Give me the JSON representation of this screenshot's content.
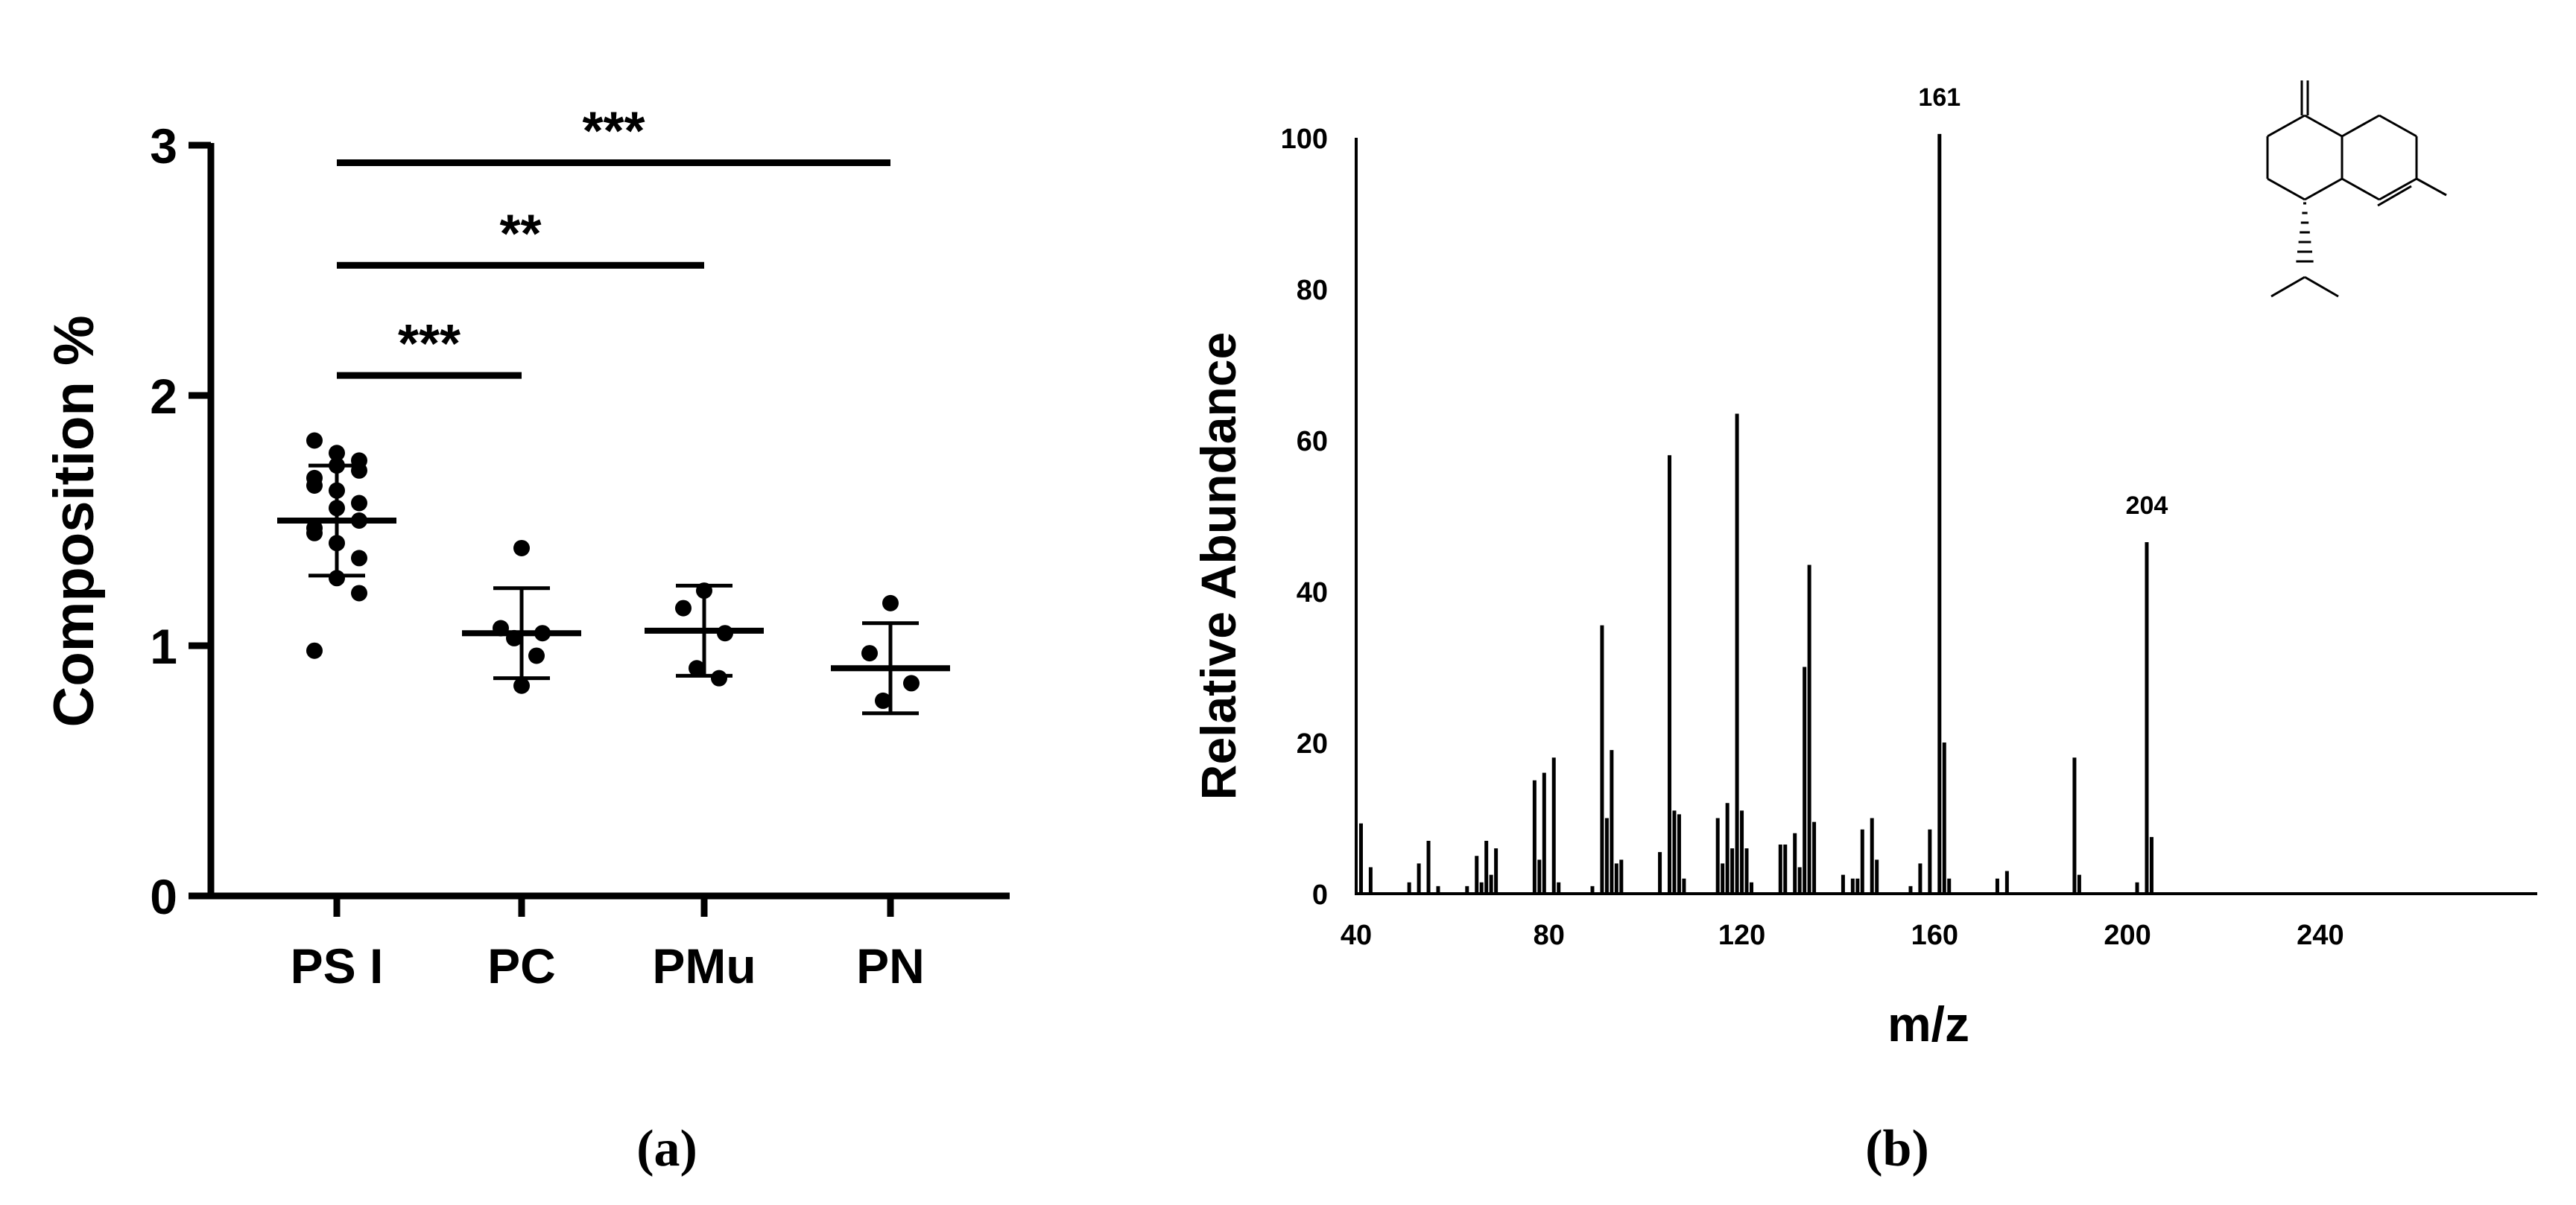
{
  "colors": {
    "ink": "#000000",
    "background": "#ffffff"
  },
  "chart_data": [
    {
      "type": "scatter",
      "panel_label": "(a)",
      "xlabel": "",
      "ylabel": "Composition %",
      "ylim": [
        0,
        3
      ],
      "yticks": [
        "0",
        "1",
        "2",
        "3"
      ],
      "categories": [
        "PS I",
        "PC",
        "PMu",
        "PN"
      ],
      "series": [
        {
          "name": "PS I",
          "points": [
            1.82,
            1.77,
            1.74,
            1.72,
            1.7,
            1.67,
            1.64,
            1.62,
            1.57,
            1.55,
            1.5,
            1.47,
            1.45,
            1.41,
            1.35,
            1.27,
            1.21,
            0.98
          ],
          "mean": 1.5,
          "sd": [
            1.28,
            1.72
          ]
        },
        {
          "name": "PC",
          "points": [
            1.39,
            1.07,
            1.05,
            1.03,
            0.96,
            0.84
          ],
          "mean": 1.05,
          "sd": [
            0.87,
            1.23
          ]
        },
        {
          "name": "PMu",
          "points": [
            1.22,
            1.15,
            1.05,
            0.91,
            0.87
          ],
          "mean": 1.06,
          "sd": [
            0.88,
            1.24
          ]
        },
        {
          "name": "PN",
          "points": [
            1.17,
            0.97,
            0.85,
            0.78
          ],
          "mean": 0.91,
          "sd": [
            0.73,
            1.09
          ]
        }
      ],
      "annotations": [
        {
          "from": "PS I",
          "to": "PC",
          "y": 2.08,
          "label": "***"
        },
        {
          "from": "PS I",
          "to": "PMu",
          "y": 2.52,
          "label": "**"
        },
        {
          "from": "PS I",
          "to": "PN",
          "y": 2.93,
          "label": "***"
        }
      ]
    },
    {
      "type": "bar",
      "panel_label": "(b)",
      "xlabel": "m/z",
      "ylabel": "Relative Abundance",
      "xlim": [
        40,
        285
      ],
      "ylim": [
        0,
        100
      ],
      "xticks": [
        "40",
        "80",
        "120",
        "160",
        "200",
        "240"
      ],
      "yticks": [
        "0",
        "20",
        "40",
        "60",
        "80",
        "100"
      ],
      "peak_labels": [
        {
          "mz": 161,
          "label": "161"
        },
        {
          "mz": 204,
          "label": "204"
        }
      ],
      "peaks": [
        [
          41,
          9.3
        ],
        [
          43,
          3.5
        ],
        [
          51,
          1.5
        ],
        [
          53,
          4
        ],
        [
          55,
          7
        ],
        [
          57,
          1
        ],
        [
          63,
          1
        ],
        [
          65,
          5
        ],
        [
          66,
          1.5
        ],
        [
          67,
          7
        ],
        [
          68,
          2.5
        ],
        [
          69,
          6
        ],
        [
          77,
          15
        ],
        [
          78,
          4.5
        ],
        [
          79,
          16
        ],
        [
          81,
          18
        ],
        [
          82,
          1.5
        ],
        [
          89,
          1
        ],
        [
          91,
          35.5
        ],
        [
          92,
          10
        ],
        [
          93,
          19
        ],
        [
          94,
          4
        ],
        [
          95,
          4.5
        ],
        [
          103,
          5.5
        ],
        [
          105,
          58
        ],
        [
          106,
          11
        ],
        [
          107,
          10.5
        ],
        [
          108,
          2
        ],
        [
          115,
          10
        ],
        [
          116,
          4
        ],
        [
          117,
          12
        ],
        [
          118,
          6
        ],
        [
          119,
          63.5
        ],
        [
          120,
          11
        ],
        [
          121,
          6
        ],
        [
          122,
          1.5
        ],
        [
          128,
          6.5
        ],
        [
          129,
          6.5
        ],
        [
          131,
          8
        ],
        [
          132,
          3.5
        ],
        [
          133,
          30
        ],
        [
          134,
          43.5
        ],
        [
          135,
          9.5
        ],
        [
          141,
          2.5
        ],
        [
          143,
          2
        ],
        [
          144,
          2
        ],
        [
          145,
          8.5
        ],
        [
          147,
          10
        ],
        [
          148,
          4.5
        ],
        [
          155,
          1
        ],
        [
          157,
          4
        ],
        [
          159,
          8.5
        ],
        [
          161,
          100.5
        ],
        [
          162,
          20
        ],
        [
          163,
          2
        ],
        [
          173,
          2
        ],
        [
          175,
          3
        ],
        [
          189,
          18
        ],
        [
          190,
          2.5
        ],
        [
          202,
          1.5
        ],
        [
          204,
          46.5
        ],
        [
          205,
          7.5
        ]
      ]
    }
  ]
}
